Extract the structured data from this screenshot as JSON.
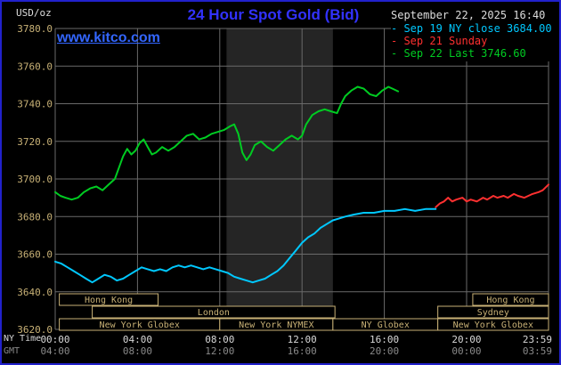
{
  "header": {
    "units": "USD/oz",
    "title": "24 Hour Spot Gold (Bid)",
    "datetime": "September 22, 2025 16:40"
  },
  "watermark": "www.kitco.com",
  "legend": [
    {
      "label": "- Sep 19 NY close 3684.00",
      "color": "#00c8ff"
    },
    {
      "label": "- Sep 21 Sunday",
      "color": "#ff3030"
    },
    {
      "label": "- Sep 22 Last 3746.60",
      "color": "#00cc22"
    }
  ],
  "axis_corner": {
    "ny_time": "NY Time",
    "gmt": "GMT"
  },
  "chart_data": {
    "type": "line",
    "title": "24 Hour Spot Gold (Bid)",
    "ylabel": "USD/oz",
    "xlabel": "NY Time (hours)",
    "x_range": [
      0,
      23.983
    ],
    "y_range": [
      3620,
      3780
    ],
    "grid": true,
    "colors": {
      "grid": "#6a6a6a",
      "axis": "#c8b176",
      "ny_labels": "#d8d8d8",
      "gmt_labels": "#8a8a8a",
      "band": "#252525"
    },
    "y_ticks": [
      {
        "v": 3780,
        "label": "3780.0"
      },
      {
        "v": 3760,
        "label": "3760.0"
      },
      {
        "v": 3740,
        "label": "3740.0"
      },
      {
        "v": 3720,
        "label": "3720.0"
      },
      {
        "v": 3700,
        "label": "3700.0"
      },
      {
        "v": 3680,
        "label": "3680.0"
      },
      {
        "v": 3660,
        "label": "3660.0"
      },
      {
        "v": 3640,
        "label": "3640.0"
      },
      {
        "v": 3620,
        "label": "3620.0"
      }
    ],
    "x_ticks": [
      {
        "h": 0,
        "ny": "00:00",
        "gmt": "04:00"
      },
      {
        "h": 4,
        "ny": "04:00",
        "gmt": "08:00"
      },
      {
        "h": 8,
        "ny": "08:00",
        "gmt": "12:00"
      },
      {
        "h": 12,
        "ny": "12:00",
        "gmt": "16:00"
      },
      {
        "h": 16,
        "ny": "16:00",
        "gmt": "20:00"
      },
      {
        "h": 20,
        "ny": "20:00",
        "gmt": "00:00"
      },
      {
        "h": 23.983,
        "ny": "23:59",
        "gmt": "03:59",
        "anchor": "end"
      }
    ],
    "band": {
      "name": "New York NYMEX session highlight",
      "start": 8.33,
      "end": 13.5
    },
    "sessions": [
      {
        "row": 0,
        "label": "Hong Kong",
        "start": 0.2,
        "end": 5.0
      },
      {
        "row": 0,
        "label": "Hong Kong",
        "start": 20.3,
        "end": 23.983
      },
      {
        "row": 1,
        "label": "London",
        "start": 1.8,
        "end": 13.6
      },
      {
        "row": 1,
        "label": "Sydney",
        "start": 18.6,
        "end": 23.983
      },
      {
        "row": 2,
        "label": "New York Globex",
        "start": 0.2,
        "end": 8.0
      },
      {
        "row": 2,
        "label": "New York NYMEX",
        "start": 8.0,
        "end": 13.5
      },
      {
        "row": 2,
        "label": "NY Globex",
        "start": 13.5,
        "end": 18.6
      },
      {
        "row": 2,
        "label": "New York Globex",
        "start": 18.6,
        "end": 23.983
      }
    ],
    "series": [
      {
        "name": "Sep 19 NY close",
        "color": "#00c8ff",
        "close": 3684.0,
        "points": [
          [
            0,
            3656
          ],
          [
            0.3,
            3655
          ],
          [
            0.6,
            3653
          ],
          [
            0.9,
            3651
          ],
          [
            1.2,
            3649
          ],
          [
            1.5,
            3647
          ],
          [
            1.8,
            3645
          ],
          [
            2.1,
            3647
          ],
          [
            2.4,
            3649
          ],
          [
            2.7,
            3648
          ],
          [
            3.0,
            3646
          ],
          [
            3.3,
            3647
          ],
          [
            3.6,
            3649
          ],
          [
            3.9,
            3651
          ],
          [
            4.2,
            3653
          ],
          [
            4.5,
            3652
          ],
          [
            4.8,
            3651
          ],
          [
            5.1,
            3652
          ],
          [
            5.4,
            3651
          ],
          [
            5.7,
            3653
          ],
          [
            6.0,
            3654
          ],
          [
            6.3,
            3653
          ],
          [
            6.6,
            3654
          ],
          [
            6.9,
            3653
          ],
          [
            7.2,
            3652
          ],
          [
            7.5,
            3653
          ],
          [
            7.8,
            3652
          ],
          [
            8.1,
            3651
          ],
          [
            8.4,
            3650
          ],
          [
            8.7,
            3648
          ],
          [
            9.0,
            3647
          ],
          [
            9.3,
            3646
          ],
          [
            9.6,
            3645
          ],
          [
            9.9,
            3646
          ],
          [
            10.2,
            3647
          ],
          [
            10.5,
            3649
          ],
          [
            10.8,
            3651
          ],
          [
            11.1,
            3654
          ],
          [
            11.4,
            3658
          ],
          [
            11.7,
            3662
          ],
          [
            12.0,
            3666
          ],
          [
            12.3,
            3669
          ],
          [
            12.6,
            3671
          ],
          [
            12.9,
            3674
          ],
          [
            13.2,
            3676
          ],
          [
            13.5,
            3678
          ],
          [
            13.8,
            3679
          ],
          [
            14.1,
            3680
          ],
          [
            14.5,
            3681
          ],
          [
            15.0,
            3682
          ],
          [
            15.5,
            3682
          ],
          [
            16.0,
            3683
          ],
          [
            16.5,
            3683
          ],
          [
            17.0,
            3684
          ],
          [
            17.5,
            3683
          ],
          [
            18.0,
            3684
          ],
          [
            18.5,
            3684
          ]
        ]
      },
      {
        "name": "Sep 21 Sunday",
        "color": "#ff3030",
        "points": [
          [
            18.5,
            3685
          ],
          [
            18.7,
            3687
          ],
          [
            18.9,
            3688
          ],
          [
            19.1,
            3690
          ],
          [
            19.3,
            3688
          ],
          [
            19.5,
            3689
          ],
          [
            19.8,
            3690
          ],
          [
            20.0,
            3688
          ],
          [
            20.2,
            3689
          ],
          [
            20.5,
            3688
          ],
          [
            20.8,
            3690
          ],
          [
            21.0,
            3689
          ],
          [
            21.3,
            3691
          ],
          [
            21.5,
            3690
          ],
          [
            21.8,
            3691
          ],
          [
            22.0,
            3690
          ],
          [
            22.3,
            3692
          ],
          [
            22.5,
            3691
          ],
          [
            22.8,
            3690
          ],
          [
            23.0,
            3691
          ],
          [
            23.2,
            3692
          ],
          [
            23.5,
            3693
          ],
          [
            23.7,
            3694
          ],
          [
            23.983,
            3697
          ]
        ]
      },
      {
        "name": "Sep 22",
        "color": "#00cc22",
        "last": 3746.6,
        "points": [
          [
            0,
            3693
          ],
          [
            0.25,
            3691
          ],
          [
            0.5,
            3690
          ],
          [
            0.8,
            3689
          ],
          [
            1.1,
            3690
          ],
          [
            1.4,
            3693
          ],
          [
            1.7,
            3695
          ],
          [
            2.0,
            3696
          ],
          [
            2.3,
            3694
          ],
          [
            2.6,
            3697
          ],
          [
            2.9,
            3700
          ],
          [
            3.1,
            3706
          ],
          [
            3.3,
            3712
          ],
          [
            3.5,
            3716
          ],
          [
            3.7,
            3713
          ],
          [
            3.9,
            3715
          ],
          [
            4.1,
            3719
          ],
          [
            4.3,
            3721
          ],
          [
            4.5,
            3717
          ],
          [
            4.7,
            3713
          ],
          [
            4.9,
            3714
          ],
          [
            5.2,
            3717
          ],
          [
            5.5,
            3715
          ],
          [
            5.8,
            3717
          ],
          [
            6.1,
            3720
          ],
          [
            6.4,
            3723
          ],
          [
            6.7,
            3724
          ],
          [
            7.0,
            3721
          ],
          [
            7.3,
            3722
          ],
          [
            7.6,
            3724
          ],
          [
            7.9,
            3725
          ],
          [
            8.2,
            3726
          ],
          [
            8.5,
            3728
          ],
          [
            8.7,
            3729
          ],
          [
            8.9,
            3724
          ],
          [
            9.1,
            3714
          ],
          [
            9.3,
            3710
          ],
          [
            9.5,
            3713
          ],
          [
            9.7,
            3718
          ],
          [
            10.0,
            3720
          ],
          [
            10.3,
            3717
          ],
          [
            10.6,
            3715
          ],
          [
            10.9,
            3718
          ],
          [
            11.2,
            3721
          ],
          [
            11.5,
            3723
          ],
          [
            11.8,
            3721
          ],
          [
            12.0,
            3723
          ],
          [
            12.2,
            3729
          ],
          [
            12.5,
            3734
          ],
          [
            12.8,
            3736
          ],
          [
            13.1,
            3737
          ],
          [
            13.4,
            3736
          ],
          [
            13.7,
            3735
          ],
          [
            13.9,
            3740
          ],
          [
            14.1,
            3744
          ],
          [
            14.4,
            3747
          ],
          [
            14.7,
            3749
          ],
          [
            15.0,
            3748
          ],
          [
            15.3,
            3745
          ],
          [
            15.6,
            3744
          ],
          [
            15.9,
            3747
          ],
          [
            16.2,
            3749
          ],
          [
            16.4,
            3748
          ],
          [
            16.67,
            3746.6
          ]
        ]
      }
    ]
  }
}
